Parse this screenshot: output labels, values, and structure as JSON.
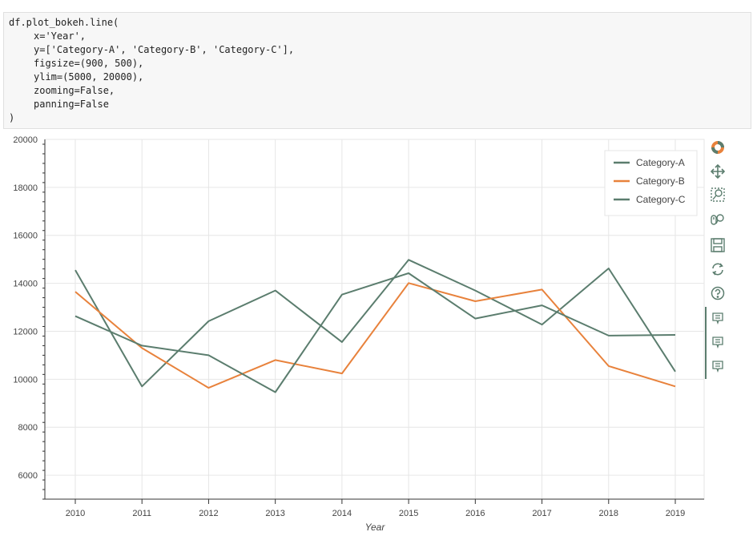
{
  "code": {
    "lines": [
      "df.plot_bokeh.line(",
      "x='Year',",
      "y=['Category-A', 'Category-B', 'Category-C'],",
      "figsize=(900, 500),",
      "ylim=(5000, 20000),",
      "zooming=False,",
      "panning=False",
      ")"
    ]
  },
  "toolbar": {
    "icons": [
      "bokeh-logo-icon",
      "pan-icon",
      "box-zoom-icon",
      "wheel-zoom-icon",
      "save-icon",
      "reset-icon",
      "help-icon",
      "hover-icon-a",
      "hover-icon-b",
      "hover-icon-c"
    ]
  },
  "colors": {
    "category_a": "#5b7d6e",
    "category_b": "#e8823c",
    "category_c": "#5b7d6e",
    "grid": "#e6e6e6",
    "axis": "#333333"
  },
  "chart_data": {
    "type": "line",
    "x": [
      2010,
      2011,
      2012,
      2013,
      2014,
      2015,
      2016,
      2017,
      2018,
      2019
    ],
    "xlabel": "Year",
    "ylabel": "",
    "title": "",
    "ylim": [
      5000,
      20000
    ],
    "yticks": [
      6000,
      8000,
      10000,
      12000,
      14000,
      16000,
      18000,
      20000
    ],
    "ytick_labels": [
      "6000",
      "8000",
      "10000",
      "12000",
      "14000",
      "16000",
      "18000",
      "20000"
    ],
    "xtick_labels": [
      "2010",
      "2011",
      "2012",
      "2013",
      "2014",
      "2015",
      "2016",
      "2017",
      "2018",
      "2019"
    ],
    "grid": true,
    "legend_position": "top-right",
    "series": [
      {
        "name": "Category-A",
        "values": [
          14550,
          9700,
          12420,
          13700,
          11550,
          14980,
          13700,
          12280,
          14620,
          10320
        ]
      },
      {
        "name": "Category-B",
        "values": [
          13650,
          11300,
          9640,
          10800,
          10240,
          14010,
          13250,
          13740,
          10550,
          9700
        ]
      },
      {
        "name": "Category-C",
        "values": [
          12630,
          11400,
          11000,
          9460,
          13530,
          14420,
          12530,
          13080,
          11820,
          11850
        ]
      }
    ]
  }
}
